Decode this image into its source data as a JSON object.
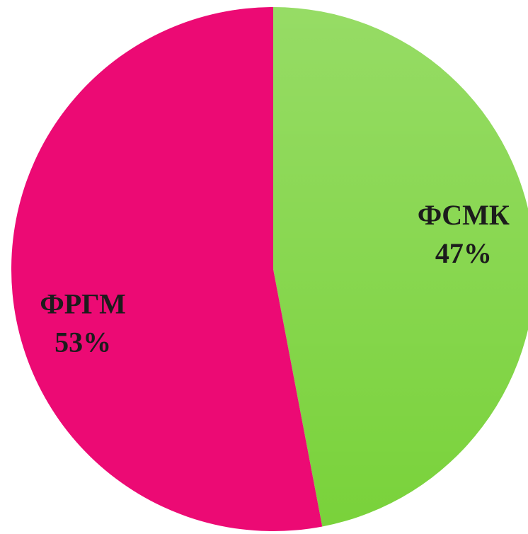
{
  "chart_data": {
    "type": "pie",
    "categories": [
      "ФСМК",
      "ФРГМ"
    ],
    "values": [
      47,
      53
    ],
    "value_labels": [
      "47%",
      "53%"
    ],
    "colors": [
      "#79d23a",
      "#ec0a74"
    ]
  }
}
